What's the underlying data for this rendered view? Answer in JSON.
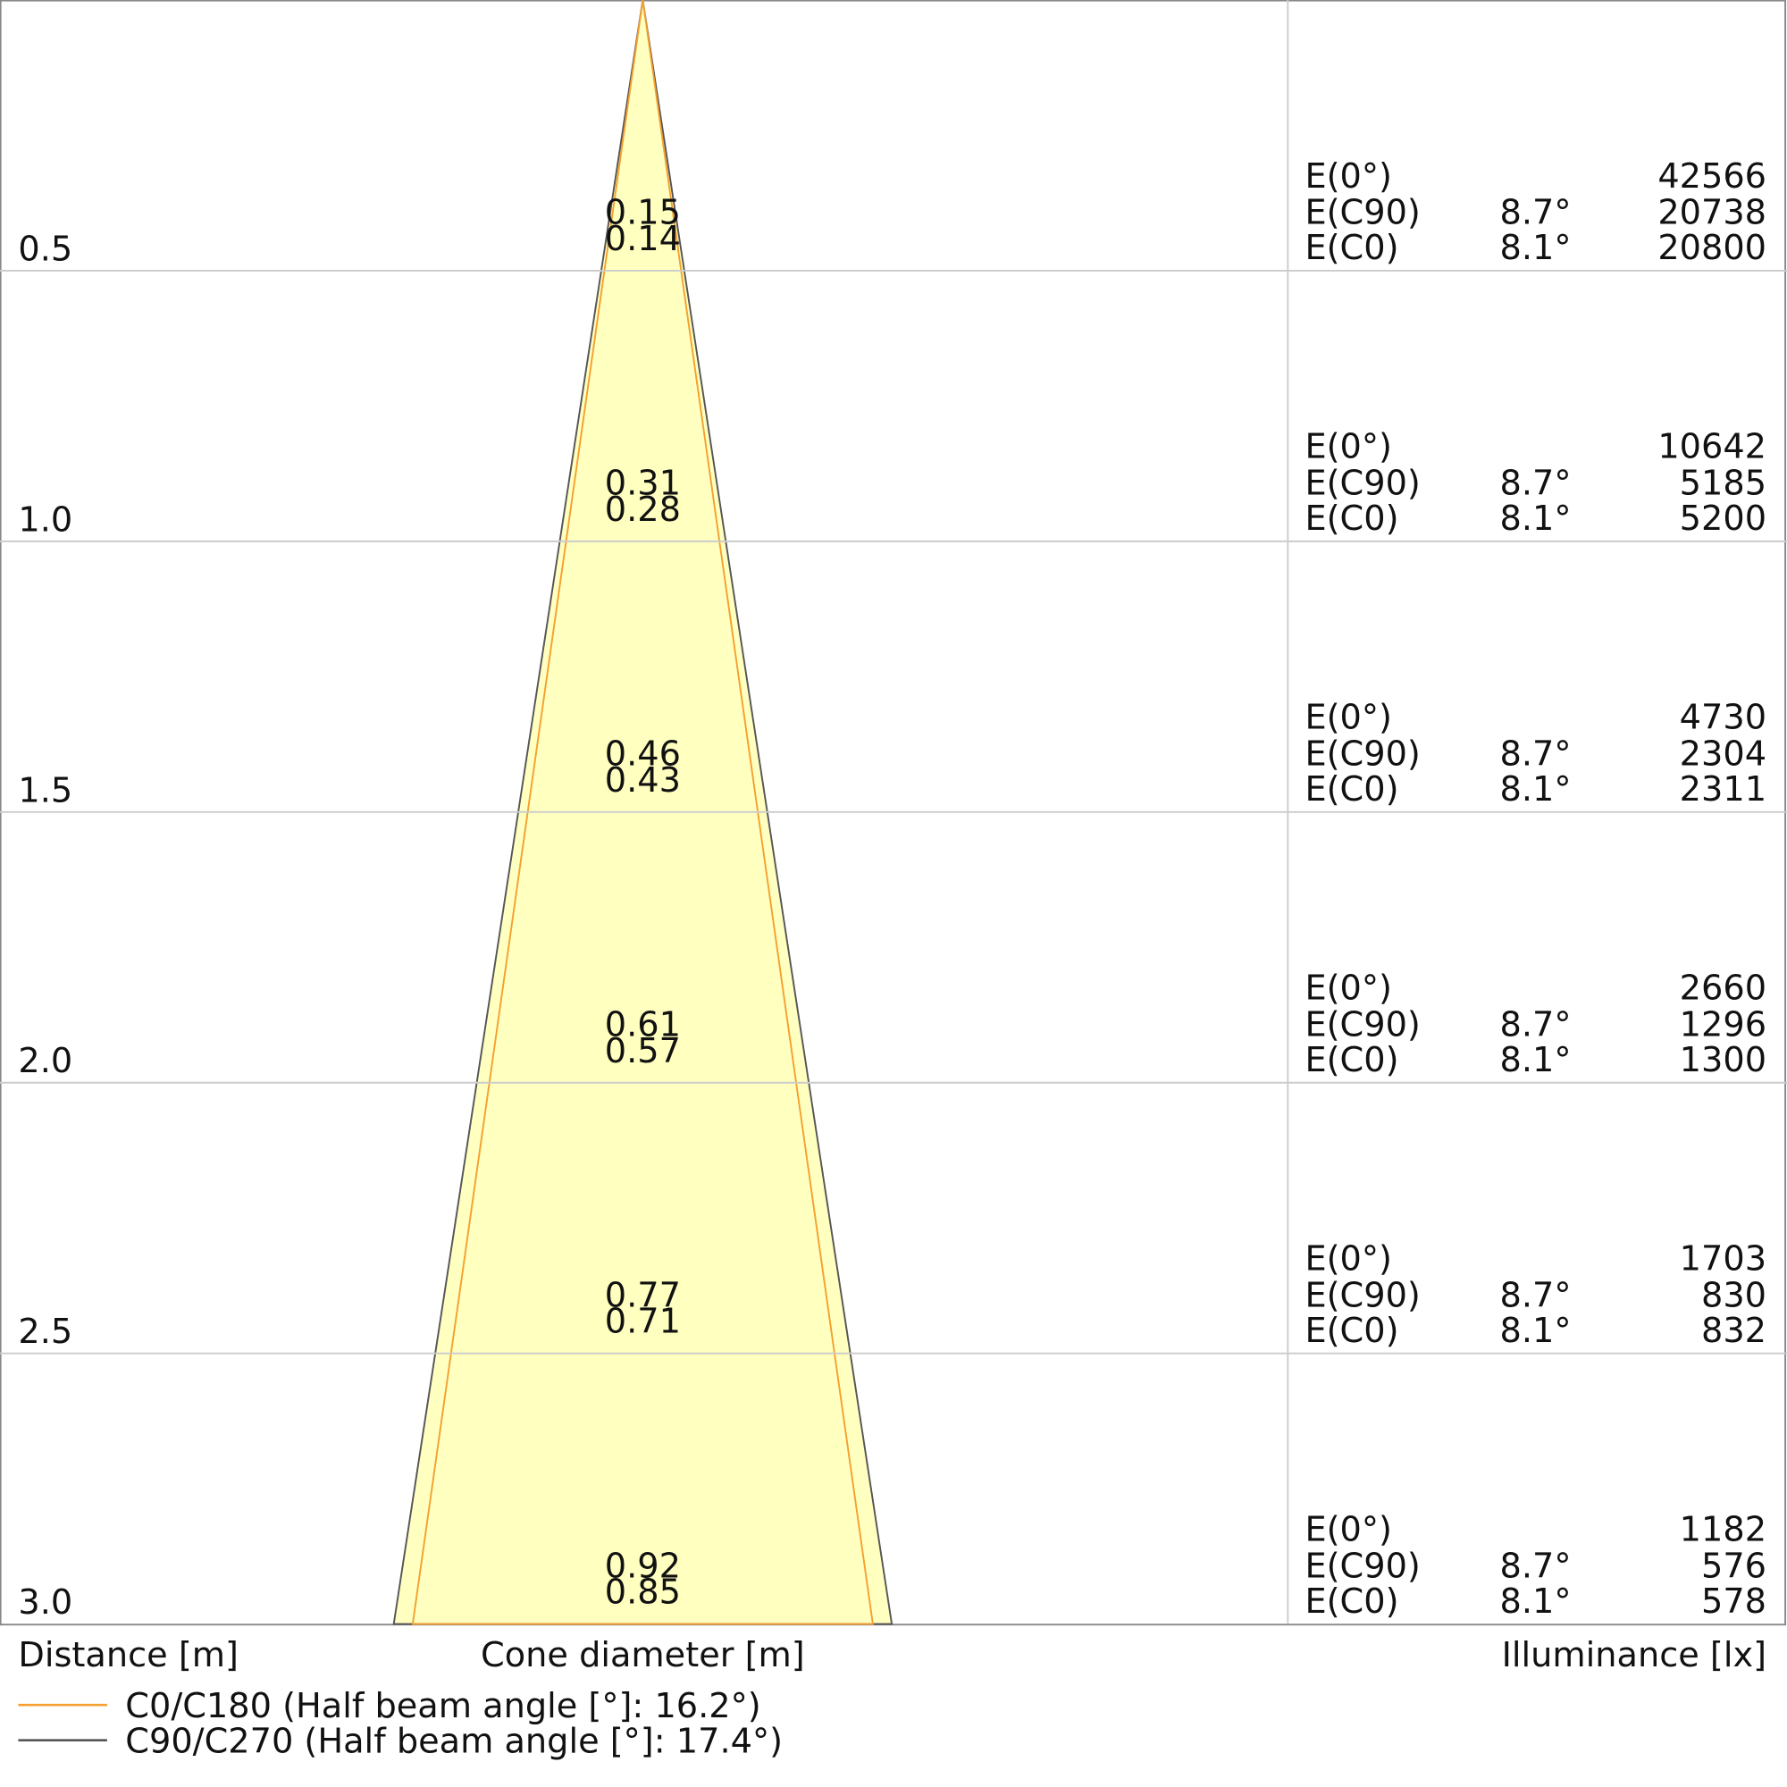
{
  "labels": {
    "distance": "Distance [m]",
    "cone": "Cone diameter [m]",
    "illuminance": "Illuminance [lx]"
  },
  "legend": [
    {
      "label": "C0/C180 (Half beam angle [°]: 16.2°)",
      "color": "#f5a030"
    },
    {
      "label": "C90/C270 (Half beam angle [°]: 17.4°)",
      "color": "#555555"
    }
  ],
  "rows": [
    {
      "distance": "0.5",
      "dia_c90": "0.15",
      "dia_c0": "0.14",
      "e0_label": "E(0°)",
      "e0": "42566",
      "ec90_label": "E(C90)",
      "c90_angle": "8.7°",
      "ec90": "20738",
      "ec0_label": "E(C0)",
      "c0_angle": "8.1°",
      "ec0": "20800"
    },
    {
      "distance": "1.0",
      "dia_c90": "0.31",
      "dia_c0": "0.28",
      "e0_label": "E(0°)",
      "e0": "10642",
      "ec90_label": "E(C90)",
      "c90_angle": "8.7°",
      "ec90": "5185",
      "ec0_label": "E(C0)",
      "c0_angle": "8.1°",
      "ec0": "5200"
    },
    {
      "distance": "1.5",
      "dia_c90": "0.46",
      "dia_c0": "0.43",
      "e0_label": "E(0°)",
      "e0": "4730",
      "ec90_label": "E(C90)",
      "c90_angle": "8.7°",
      "ec90": "2304",
      "ec0_label": "E(C0)",
      "c0_angle": "8.1°",
      "ec0": "2311"
    },
    {
      "distance": "2.0",
      "dia_c90": "0.61",
      "dia_c0": "0.57",
      "e0_label": "E(0°)",
      "e0": "2660",
      "ec90_label": "E(C90)",
      "c90_angle": "8.7°",
      "ec90": "1296",
      "ec0_label": "E(C0)",
      "c0_angle": "8.1°",
      "ec0": "1300"
    },
    {
      "distance": "2.5",
      "dia_c90": "0.77",
      "dia_c0": "0.71",
      "e0_label": "E(0°)",
      "e0": "1703",
      "ec90_label": "E(C90)",
      "c90_angle": "8.7°",
      "ec90": "830",
      "ec0_label": "E(C0)",
      "c0_angle": "8.1°",
      "ec0": "832"
    },
    {
      "distance": "3.0",
      "dia_c90": "0.92",
      "dia_c0": "0.85",
      "e0_label": "E(0°)",
      "e0": "1182",
      "ec90_label": "E(C90)",
      "c90_angle": "8.7°",
      "ec90": "576",
      "ec0_label": "E(C0)",
      "c0_angle": "8.1°",
      "ec0": "578"
    }
  ]
}
